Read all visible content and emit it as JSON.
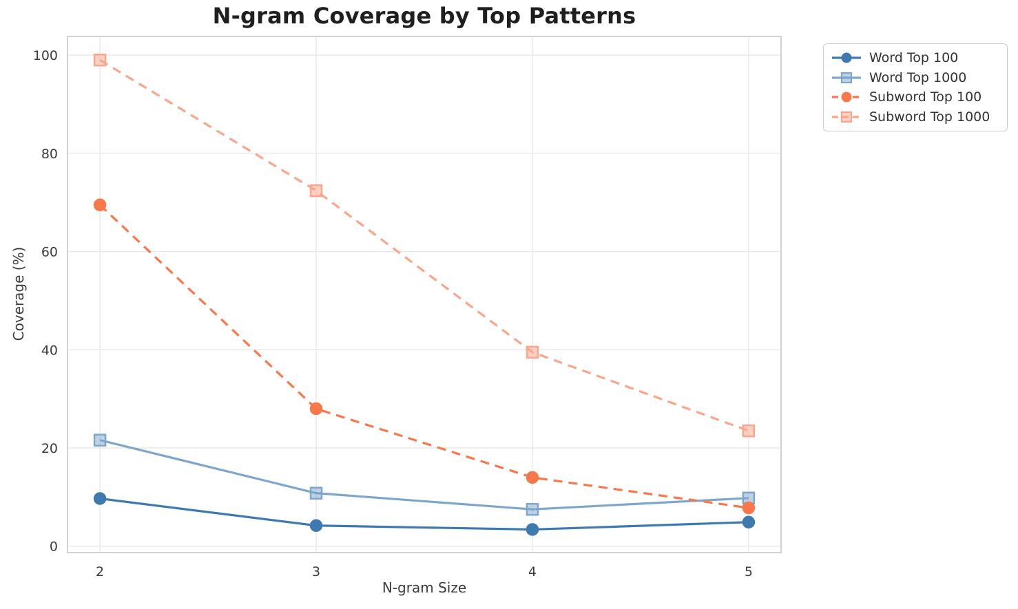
{
  "figure": {
    "title": "N-gram Coverage by Top Patterns",
    "x_axis_label": "N-gram Size",
    "y_axis_label": "Coverage (%)"
  },
  "chart_data": {
    "type": "line",
    "title": "N-gram Coverage by Top Patterns",
    "xlabel": "N-gram Size",
    "ylabel": "Coverage (%)",
    "x": [
      2,
      3,
      4,
      5
    ],
    "xtick_labels": [
      "2",
      "3",
      "4",
      "5"
    ],
    "yticks": [
      0,
      20,
      40,
      60,
      80,
      100
    ],
    "ytick_labels": [
      "0",
      "20",
      "40",
      "60",
      "80",
      "100"
    ],
    "xlim": [
      1.85,
      5.15
    ],
    "ylim": [
      -1.3,
      103.8
    ],
    "grid": true,
    "legend_position": "outside-upper-right",
    "series": [
      {
        "name": "Word Top 100",
        "values": [
          9.7,
          4.2,
          3.4,
          4.9
        ],
        "color": "#3e79b0",
        "line_style": "solid",
        "marker": "circle"
      },
      {
        "name": "Word Top 1000",
        "values": [
          21.6,
          10.8,
          7.5,
          9.8
        ],
        "color": "#7ea6cd",
        "line_style": "solid",
        "marker": "square"
      },
      {
        "name": "Subword Top 100",
        "values": [
          69.5,
          28.0,
          14.0,
          7.8
        ],
        "color": "#f8774b",
        "line_style": "dashed",
        "marker": "circle"
      },
      {
        "name": "Subword Top 1000",
        "values": [
          99.0,
          72.4,
          39.5,
          23.5
        ],
        "color": "#fba58a",
        "line_style": "dashed",
        "marker": "square"
      }
    ]
  },
  "style": {
    "grid_color": "#e8e8e8",
    "spine_color": "#d3d3d3",
    "tick_color": "#3b3b3b",
    "title_color": "#1f1f1f",
    "background": "#ffffff"
  }
}
